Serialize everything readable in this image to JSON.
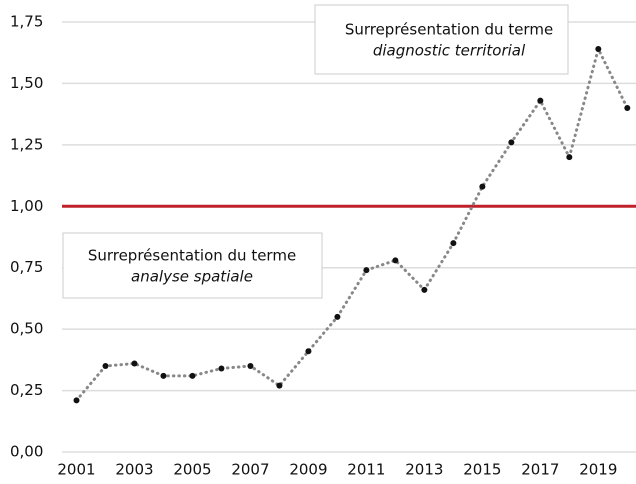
{
  "chart_data": {
    "type": "line",
    "x": [
      2001,
      2002,
      2003,
      2004,
      2005,
      2006,
      2007,
      2008,
      2009,
      2010,
      2011,
      2012,
      2013,
      2014,
      2015,
      2016,
      2017,
      2018,
      2019,
      2020
    ],
    "series": [
      {
        "color": "#888888",
        "values": [
          0.21,
          0.35,
          0.36,
          0.31,
          0.31,
          0.34,
          0.35,
          0.27,
          0.41,
          0.55,
          0.74,
          0.78,
          0.66,
          0.85,
          1.08,
          1.26,
          1.43,
          1.2,
          1.64,
          1.4
        ]
      }
    ],
    "xlim": [
      2000.5,
      2020.3
    ],
    "xticks": [
      2001,
      2003,
      2005,
      2007,
      2009,
      2011,
      2013,
      2015,
      2017,
      2019
    ],
    "ylim": [
      0,
      1.75
    ],
    "yticks": [
      {
        "value": 0,
        "label": "0,00"
      },
      {
        "value": 0.25,
        "label": "0,25"
      },
      {
        "value": 0.5,
        "label": "0,50"
      },
      {
        "value": 0.75,
        "label": "0,75"
      },
      {
        "value": 1,
        "label": "1,00"
      },
      {
        "value": 1.25,
        "label": "1,25"
      },
      {
        "value": 1.5,
        "label": "1,50"
      },
      {
        "value": 1.75,
        "label": "1,75"
      }
    ],
    "grid": true,
    "reference_line": {
      "value": 1,
      "color": "#c0202a"
    },
    "annotations": [
      {
        "lines": [
          "Surreprésentation du terme",
          "diagnostic territorial"
        ]
      },
      {
        "lines": [
          "Surreprésentation du terme",
          "analyse spatiale"
        ]
      }
    ]
  }
}
